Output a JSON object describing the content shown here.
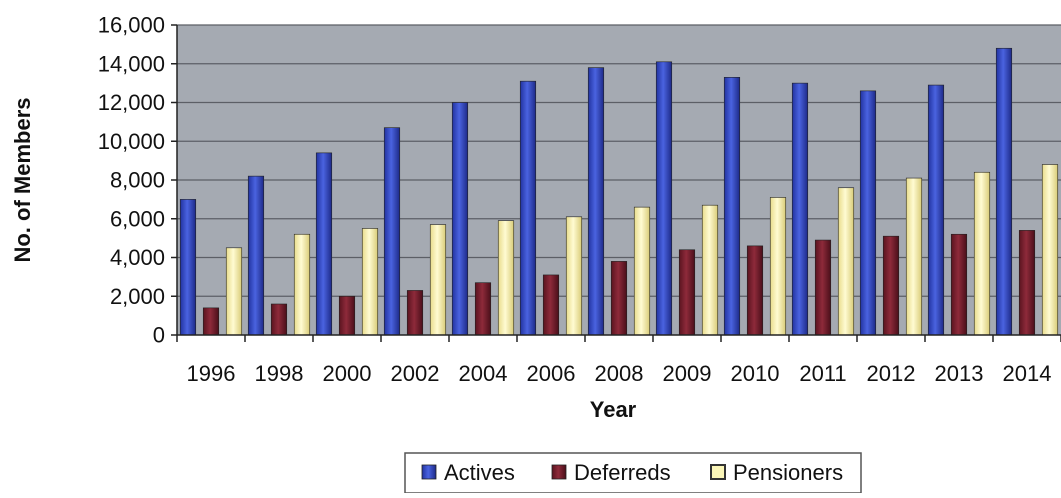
{
  "chart_data": {
    "type": "bar",
    "title": "",
    "xlabel": "Year",
    "ylabel": "No. of Members",
    "ylim": [
      0,
      16000
    ],
    "y_ticks": [
      0,
      2000,
      4000,
      6000,
      8000,
      10000,
      12000,
      14000,
      16000
    ],
    "y_tick_labels": [
      "0",
      "2,000",
      "4,000",
      "6,000",
      "8,000",
      "10,000",
      "12,000",
      "14,000",
      "16,000"
    ],
    "categories": [
      "1996",
      "1998",
      "2000",
      "2002",
      "2004",
      "2006",
      "2008",
      "2009",
      "2010",
      "2011",
      "2012",
      "2013",
      "2014"
    ],
    "series": [
      {
        "name": "Actives",
        "color": "#3a4fc4",
        "values": [
          7000,
          8200,
          9400,
          10700,
          12000,
          13100,
          13800,
          14100,
          13300,
          13000,
          12600,
          12900,
          14800
        ]
      },
      {
        "name": "Deferreds",
        "color": "#7a1f2e",
        "values": [
          1400,
          1600,
          2000,
          2300,
          2700,
          3100,
          3800,
          4400,
          4600,
          4900,
          5100,
          5200,
          5400
        ]
      },
      {
        "name": "Pensioners",
        "color": "#fbf6b8",
        "values": [
          4500,
          5200,
          5500,
          5700,
          5900,
          6100,
          6600,
          6700,
          7100,
          7600,
          8100,
          8400,
          8800
        ]
      }
    ],
    "grid": true,
    "legend_position": "bottom",
    "plot_background": "#a5aab2"
  }
}
